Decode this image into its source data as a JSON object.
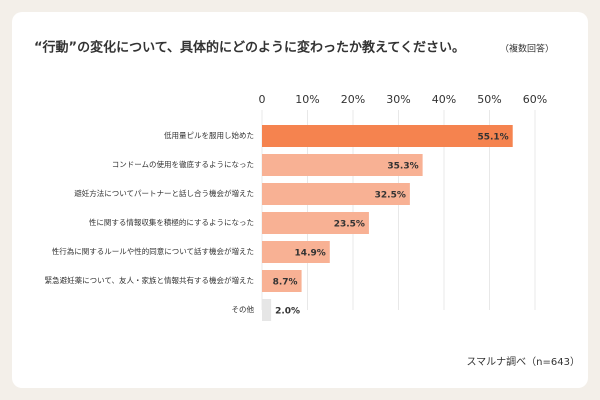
{
  "chart_data": {
    "type": "hbar",
    "title": "“行動”の変化について、具体的にどのように変わったか教えてください。",
    "subtitle": "（複数回答）",
    "source": "スマルナ調べ（n=643）",
    "categories": [
      "低用量ピルを服用し始めた",
      "コンドームの使用を徹底するようになった",
      "避妊方法についてパートナーと話し合う機会が増えた",
      "性に関する情報収集を積極的にするようになった",
      "性行為に関するルールや性的同意について話す機会が増えた",
      "緊急避妊薬について、友人・家族と情報共有する機会が増えた",
      "その他"
    ],
    "values": [
      55.1,
      35.3,
      32.5,
      23.5,
      14.9,
      8.7,
      2.0
    ],
    "value_labels": [
      "55.1%",
      "35.3%",
      "32.5%",
      "23.5%",
      "14.9%",
      "8.7%",
      "2.0%"
    ],
    "colors": [
      "#f5834f",
      "#f8b194",
      "#f8b194",
      "#f8b194",
      "#f8b194",
      "#f8b194",
      "#e6e6e6"
    ],
    "xlim": [
      0,
      60
    ],
    "xticks": [
      0,
      {
        "value": 10,
        "label": "10%"
      },
      {
        "value": 20,
        "label": "20%"
      },
      {
        "value": 30,
        "label": "30%"
      },
      {
        "value": 40,
        "label": "40%"
      },
      {
        "value": 50,
        "label": "50%"
      },
      {
        "value": 60,
        "label": "60%"
      }
    ],
    "grid": true
  }
}
